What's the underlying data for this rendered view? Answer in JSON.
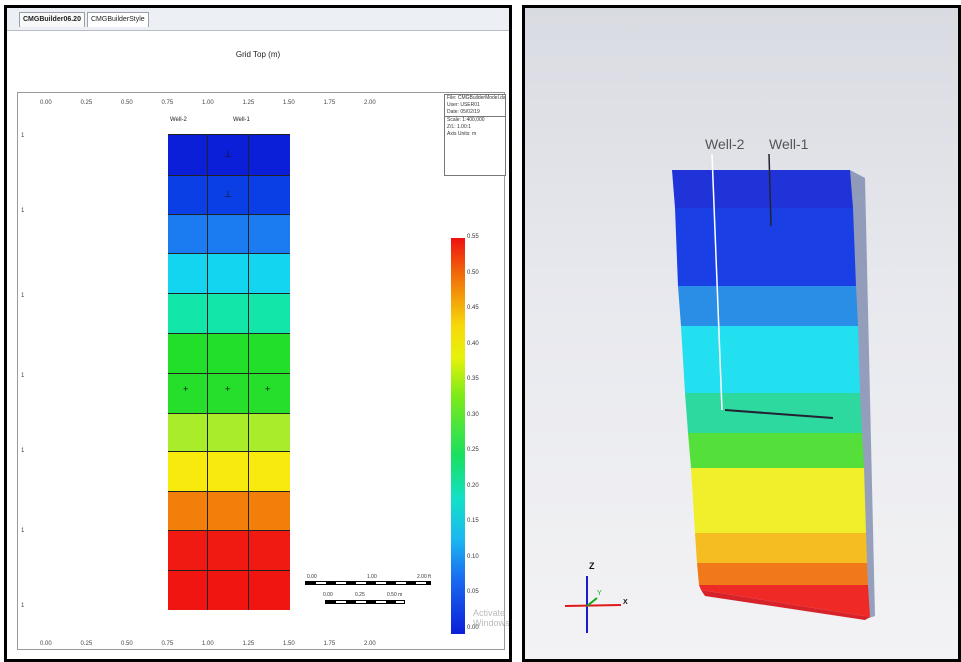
{
  "left_window": {
    "tabs": [
      "CMGBuilder06.20",
      "CMGBuilderStyle"
    ],
    "plot_title": "Grid Top (m)",
    "x_ticks_top": [
      "0.00",
      "0.25",
      "0.50",
      "0.75",
      "1.00",
      "1.25",
      "1.50",
      "1.75",
      "2.00"
    ],
    "x_ticks_bottom": [
      "0.00",
      "0.25",
      "0.50",
      "0.75",
      "1.00",
      "1.25",
      "1.50",
      "1.75",
      "2.00"
    ],
    "well_labels": [
      "Well-2",
      "Well-1"
    ],
    "info_lines": [
      "File: CMGBuilderModel.dat",
      "User: USER01",
      "Date: 05/02/19",
      "Scale: 1:400,000",
      "Z/L: 1.00:1",
      "Axis Units: m"
    ],
    "legend_values": [
      "0.55",
      "0.50",
      "0.45",
      "0.40",
      "0.35",
      "0.30",
      "0.25",
      "0.20",
      "0.15",
      "0.10",
      "0.05",
      "0.00"
    ],
    "scale_labels_top": [
      "0.00",
      "1.00",
      "2.00 ft"
    ],
    "scale_labels_bottom": [
      "0.00",
      "0.25",
      "0.50 m"
    ],
    "watermark": "Activate Windows"
  },
  "right_window": {
    "well_labels": [
      "Well-2",
      "Well-1"
    ],
    "axis_labels": [
      "Z",
      "Y",
      "X"
    ]
  },
  "colors": {
    "layers": [
      "#0b1fd9",
      "#0a3fe6",
      "#1a7cf0",
      "#13d5ef",
      "#12e6a8",
      "#22e02a",
      "#25df2a",
      "#a8ec2a",
      "#f7ea0c",
      "#f27f0a",
      "#f01a12",
      "#f01510"
    ]
  }
}
